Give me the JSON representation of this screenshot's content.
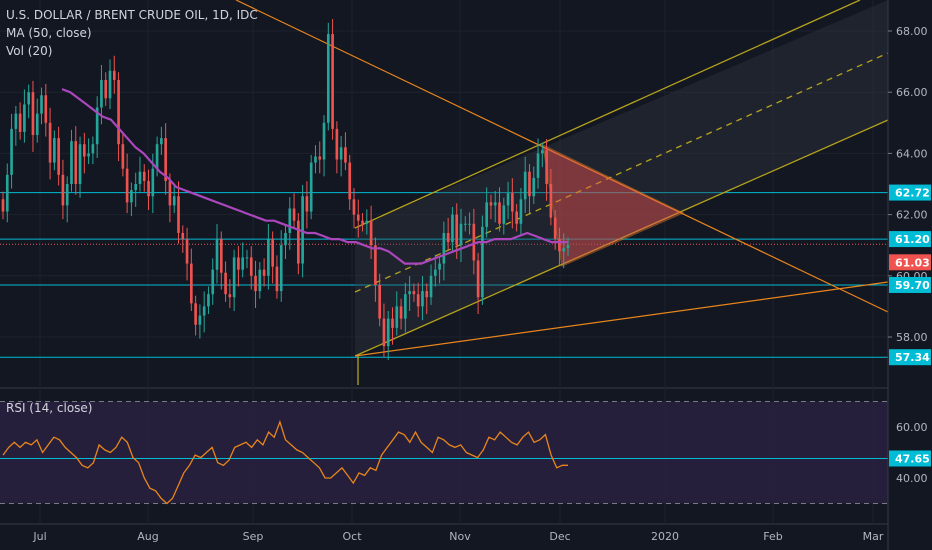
{
  "legend": {
    "title": "U.S. DOLLAR / BRENT CRUDE OIL, 1D, IDC",
    "ma": "MA (50, close)",
    "vol": "Vol (20)",
    "rsi": "RSI (14, close)"
  },
  "colors": {
    "background": "#131722",
    "up": "#26a69a",
    "down": "#ef5350",
    "ma": "#ab47bc",
    "hline": "#00bcd4",
    "pitchfork": "#b5a21c",
    "trend": "#e8851c",
    "rsi": "#e8851c",
    "rsi_band": "#2a2140"
  },
  "chart_data": [
    {
      "type": "candlestick",
      "title": "U.S. DOLLAR / BRENT CRUDE OIL, 1D, IDC",
      "x_ticks": [
        "Jul",
        "Aug",
        "Sep",
        "Oct",
        "Nov",
        "Dec",
        "2020",
        "Feb",
        "Mar"
      ],
      "y_ticks": [
        "58.00",
        "60.00",
        "62.00",
        "64.00",
        "66.00",
        "68.00"
      ],
      "ylim": [
        56.3,
        68.6
      ],
      "horizontal_levels": [
        {
          "value": 62.72,
          "label": "62.72"
        },
        {
          "value": 61.2,
          "label": "61.20"
        },
        {
          "value": 59.7,
          "label": "59.70"
        },
        {
          "value": 57.34,
          "label": "57.34"
        }
      ],
      "last_price": {
        "value": 61.03,
        "label": "61.03"
      },
      "closes": [
        62.1,
        63.3,
        64.8,
        65.3,
        64.7,
        65.6,
        66.0,
        64.6,
        65.3,
        65.9,
        65.0,
        63.7,
        64.5,
        63.3,
        62.3,
        63.0,
        64.4,
        63.0,
        64.3,
        63.9,
        64.0,
        64.3,
        65.5,
        66.4,
        65.8,
        66.7,
        66.4,
        64.3,
        63.5,
        62.4,
        62.8,
        63.0,
        63.4,
        63.1,
        62.6,
        63.5,
        64.3,
        64.5,
        63.1,
        62.3,
        62.6,
        61.4,
        61.2,
        60.4,
        59.1,
        58.4,
        58.7,
        59.0,
        59.4,
        60.2,
        61.2,
        60.1,
        59.4,
        59.3,
        60.6,
        60.2,
        60.6,
        60.6,
        60.0,
        59.5,
        60.2,
        60.0,
        61.2,
        60.3,
        59.5,
        61.0,
        61.4,
        62.2,
        61.8,
        60.4,
        62.6,
        62.1,
        63.7,
        63.9,
        63.8,
        65.0,
        67.9,
        64.8,
        63.8,
        64.2,
        63.7,
        62.5,
        62.0,
        61.8,
        61.7,
        61.8,
        61.0,
        59.7,
        58.6,
        57.7,
        58.6,
        58.3,
        59.0,
        58.6,
        59.4,
        59.5,
        59.4,
        59.0,
        59.5,
        59.3,
        60.0,
        60.2,
        60.4,
        61.4,
        61.1,
        62.0,
        61.0,
        61.7,
        61.7,
        61.7,
        60.5,
        59.3,
        61.6,
        62.4,
        62.3,
        62.4,
        61.7,
        62.3,
        62.7,
        62.1,
        61.7,
        62.5,
        63.4,
        62.6,
        63.2,
        64.0,
        64.1,
        63.0,
        61.9,
        61.2,
        60.8,
        60.9,
        61.0
      ],
      "ma50": [
        66.1,
        66.0,
        65.8,
        65.6,
        65.4,
        65.2,
        65.1,
        64.8,
        64.5,
        64.2,
        64.0,
        63.7,
        63.4,
        63.2,
        62.9,
        62.8,
        62.7,
        62.6,
        62.5,
        62.4,
        62.3,
        62.2,
        62.1,
        62.0,
        61.9,
        61.8,
        61.8,
        61.7,
        61.6,
        61.5,
        61.4,
        61.4,
        61.3,
        61.2,
        61.2,
        61.1,
        61.1,
        61.0,
        60.9,
        60.9,
        60.8,
        60.6,
        60.4,
        60.4,
        60.4,
        60.5,
        60.6,
        60.7,
        60.8,
        60.9,
        61.0,
        61.1,
        61.1,
        61.2,
        61.2,
        61.2,
        61.3,
        61.4,
        61.3,
        61.2,
        61.1,
        61.1,
        61.1
      ],
      "rsi": {
        "y_ticks": [
          "40.00",
          "60.00"
        ],
        "levels": [
          {
            "value": 47.65,
            "label": "47.65"
          }
        ],
        "band": [
          30,
          70
        ],
        "values": [
          49,
          52,
          54,
          52,
          54,
          53,
          55,
          50,
          53,
          56,
          55,
          52,
          50,
          48,
          45,
          44,
          46,
          53,
          51,
          50,
          52,
          56,
          54,
          48,
          46,
          40,
          36,
          35,
          32,
          30,
          32,
          37,
          42,
          45,
          49,
          48,
          50,
          52,
          46,
          45,
          47,
          52,
          53,
          54,
          52,
          55,
          53,
          58,
          56,
          62,
          55,
          53,
          51,
          50,
          48,
          46,
          44,
          40,
          40,
          42,
          44,
          41,
          38,
          42,
          41,
          44,
          43,
          49,
          52,
          55,
          58,
          57,
          54,
          58,
          54,
          52,
          50,
          56,
          55,
          53,
          52,
          53,
          50,
          49,
          48,
          51,
          56,
          55,
          58,
          56,
          54,
          53,
          56,
          58,
          54,
          55,
          57,
          49,
          44,
          45,
          45
        ]
      }
    }
  ]
}
